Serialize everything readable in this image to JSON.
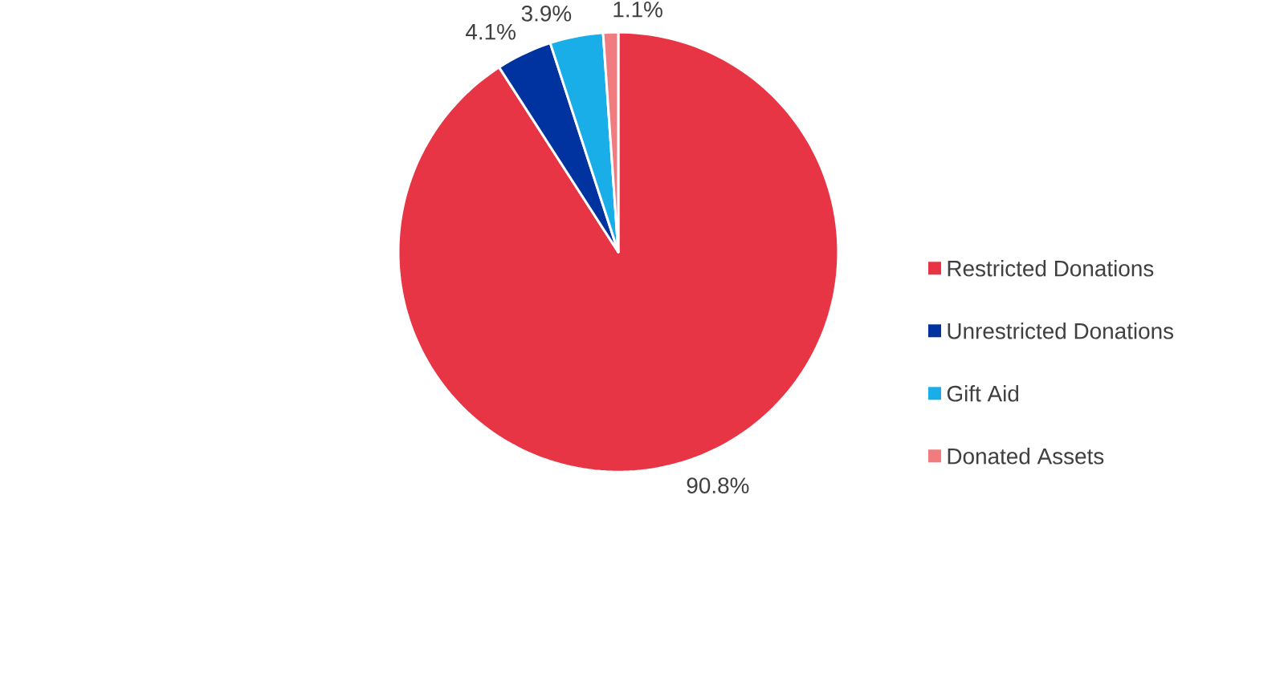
{
  "chart_data": {
    "type": "pie",
    "categories": [
      "Restricted Donations",
      "Unrestricted Donations",
      "Gift Aid",
      "Donated Assets"
    ],
    "values": [
      90.8,
      4.1,
      3.9,
      1.1
    ],
    "colors": [
      "#e83545",
      "#0033a0",
      "#1aaee8",
      "#f07c80"
    ],
    "value_labels": [
      "90.8%",
      "4.1%",
      "3.9%",
      "1.1%"
    ],
    "legend": "right"
  }
}
